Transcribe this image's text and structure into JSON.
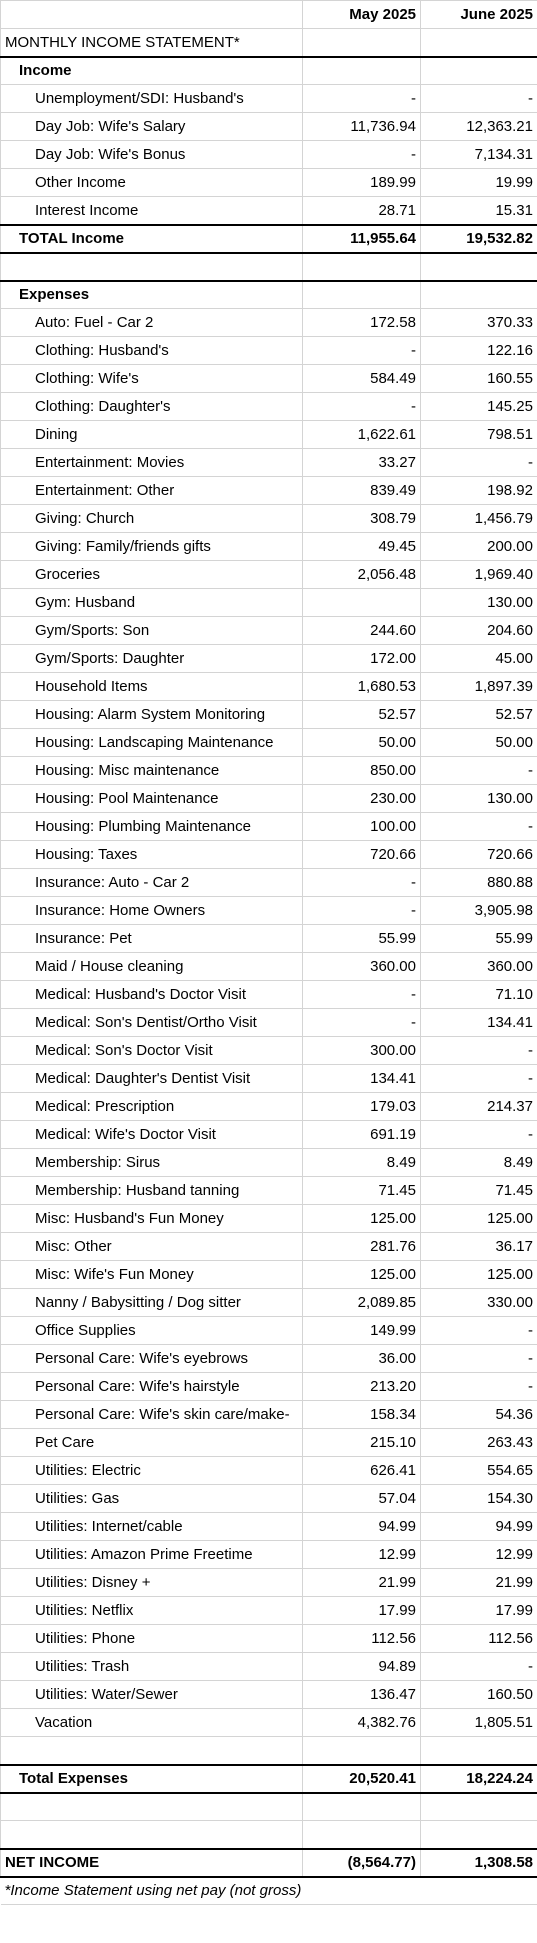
{
  "header": {
    "columns": [
      "May 2025",
      "June 2025"
    ]
  },
  "title": "MONTHLY INCOME STATEMENT*",
  "income": {
    "heading": "Income",
    "rows": [
      [
        "Unemployment/SDI: Husband's",
        "-",
        "-"
      ],
      [
        "Day Job: Wife's Salary",
        "11,736.94",
        "12,363.21"
      ],
      [
        "Day Job: Wife's Bonus",
        "-",
        "7,134.31"
      ],
      [
        "Other Income",
        "189.99",
        "19.99"
      ],
      [
        "Interest Income",
        "28.71",
        "15.31"
      ]
    ],
    "total": [
      "TOTAL Income",
      "11,955.64",
      "19,532.82"
    ]
  },
  "expenses": {
    "heading": "Expenses",
    "rows": [
      [
        "Auto: Fuel - Car 2",
        "172.58",
        "370.33"
      ],
      [
        "Clothing: Husband's",
        "-",
        "122.16"
      ],
      [
        "Clothing: Wife's",
        "584.49",
        "160.55"
      ],
      [
        "Clothing: Daughter's",
        "-",
        "145.25"
      ],
      [
        "Dining",
        "1,622.61",
        "798.51"
      ],
      [
        "Entertainment: Movies",
        "33.27",
        "-"
      ],
      [
        "Entertainment: Other",
        "839.49",
        "198.92"
      ],
      [
        "Giving: Church",
        "308.79",
        "1,456.79"
      ],
      [
        "Giving: Family/friends gifts",
        "49.45",
        "200.00"
      ],
      [
        "Groceries",
        "2,056.48",
        "1,969.40"
      ],
      [
        "Gym: Husband",
        null,
        "130.00"
      ],
      [
        "Gym/Sports: Son",
        "244.60",
        "204.60"
      ],
      [
        "Gym/Sports: Daughter",
        "172.00",
        "45.00"
      ],
      [
        "Household Items",
        "1,680.53",
        "1,897.39"
      ],
      [
        "Housing: Alarm System Monitoring",
        "52.57",
        "52.57"
      ],
      [
        "Housing: Landscaping Maintenance",
        "50.00",
        "50.00"
      ],
      [
        "Housing: Misc maintenance",
        "850.00",
        "-"
      ],
      [
        "Housing: Pool Maintenance",
        "230.00",
        "130.00"
      ],
      [
        "Housing: Plumbing Maintenance",
        "100.00",
        "-"
      ],
      [
        "Housing: Taxes",
        "720.66",
        "720.66"
      ],
      [
        "Insurance: Auto - Car 2",
        "-",
        "880.88"
      ],
      [
        "Insurance: Home Owners",
        "-",
        "3,905.98"
      ],
      [
        "Insurance: Pet",
        "55.99",
        "55.99"
      ],
      [
        "Maid / House cleaning",
        "360.00",
        "360.00"
      ],
      [
        "Medical: Husband's Doctor Visit",
        "-",
        "71.10"
      ],
      [
        "Medical: Son's Dentist/Ortho Visit",
        "-",
        "134.41"
      ],
      [
        "Medical: Son's Doctor Visit",
        "300.00",
        "-"
      ],
      [
        "Medical: Daughter's Dentist Visit",
        "134.41",
        "-"
      ],
      [
        "Medical: Prescription",
        "179.03",
        "214.37"
      ],
      [
        "Medical: Wife's Doctor Visit",
        "691.19",
        "-"
      ],
      [
        "Membership: Sirus",
        "8.49",
        "8.49"
      ],
      [
        "Membership: Husband tanning",
        "71.45",
        "71.45"
      ],
      [
        "Misc: Husband's Fun Money",
        "125.00",
        "125.00"
      ],
      [
        "Misc: Other",
        "281.76",
        "36.17"
      ],
      [
        "Misc: Wife's Fun Money",
        "125.00",
        "125.00"
      ],
      [
        "Nanny / Babysitting / Dog sitter",
        "2,089.85",
        "330.00"
      ],
      [
        "Office Supplies",
        "149.99",
        "-"
      ],
      [
        "Personal Care: Wife's eyebrows",
        "36.00",
        "-"
      ],
      [
        "Personal Care: Wife's hairstyle",
        "213.20",
        "-"
      ],
      [
        "Personal Care: Wife's skin care/make-",
        "158.34",
        "54.36"
      ],
      [
        "Pet Care",
        "215.10",
        "263.43"
      ],
      [
        "Utilities: Electric",
        "626.41",
        "554.65"
      ],
      [
        "Utilities: Gas",
        "57.04",
        "154.30"
      ],
      [
        "Utilities: Internet/cable",
        "94.99",
        "94.99"
      ],
      [
        "Utilities: Amazon Prime Freetime",
        "12.99",
        "12.99"
      ],
      [
        "Utilities: Disney +",
        "21.99",
        "21.99"
      ],
      [
        "Utilities: Netflix",
        "17.99",
        "17.99"
      ],
      [
        "Utilities: Phone",
        "112.56",
        "112.56"
      ],
      [
        "Utilities: Trash",
        "94.89",
        "-"
      ],
      [
        "Utilities: Water/Sewer",
        "136.47",
        "160.50"
      ],
      [
        "Vacation",
        "4,382.76",
        "1,805.51"
      ]
    ],
    "total": [
      "Total Expenses",
      "20,520.41",
      "18,224.24"
    ]
  },
  "net_income": [
    "NET INCOME",
    "(8,564.77)",
    "1,308.58"
  ],
  "footnote": "*Income Statement using net pay (not gross)"
}
